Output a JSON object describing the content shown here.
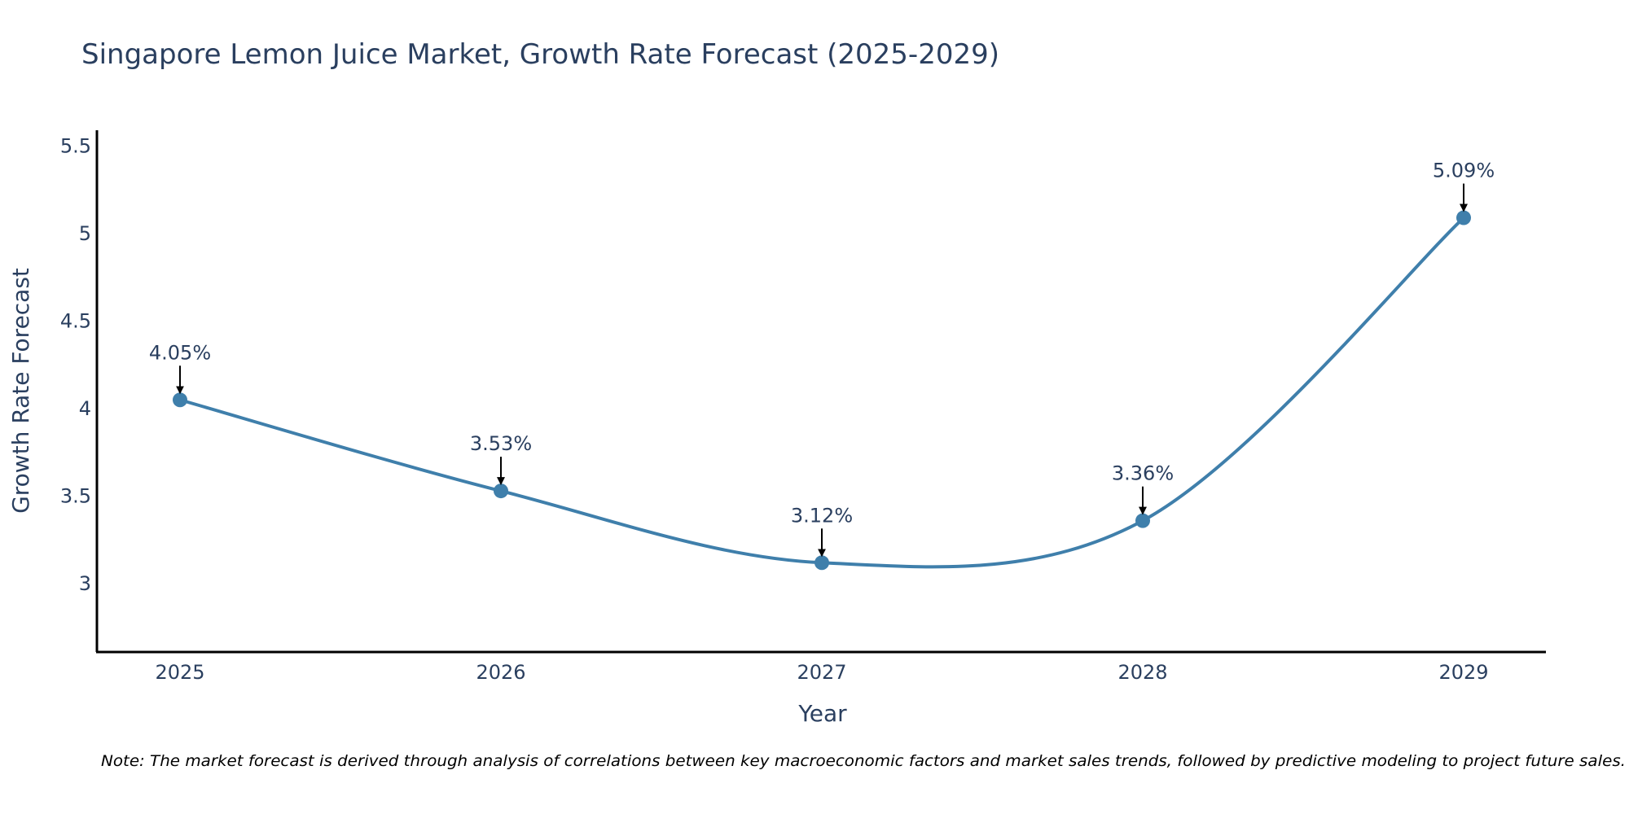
{
  "colors": {
    "line": "#3f7fab",
    "marker": "#3f7fab",
    "axis": "#000000",
    "text": "#2a3f5f",
    "arrow": "#000000"
  },
  "chart_data": {
    "type": "line",
    "title": "Singapore Lemon Juice Market, Growth Rate Forecast (2025-2029)",
    "xlabel": "Year",
    "ylabel": "Growth Rate Forecast",
    "categories": [
      "2025",
      "2026",
      "2027",
      "2028",
      "2029"
    ],
    "series": [
      {
        "name": "Growth Rate Forecast",
        "values": [
          4.05,
          3.53,
          3.12,
          3.36,
          5.09
        ]
      }
    ],
    "data_labels": [
      "4.05%",
      "3.53%",
      "3.12%",
      "3.36%",
      "5.09%"
    ],
    "y_ticks": [
      3,
      3.5,
      4,
      4.5,
      5,
      5.5
    ],
    "y_tick_labels": [
      "3",
      "3.5",
      "4",
      "4.5",
      "5",
      "5.5"
    ],
    "ylim": [
      2.61,
      5.59
    ],
    "grid": false,
    "legend": "none",
    "line_shape": "spline"
  },
  "note": "Note: The market forecast is derived through analysis of correlations between key macroeconomic factors and market sales trends, followed by predictive modeling to project future sales."
}
